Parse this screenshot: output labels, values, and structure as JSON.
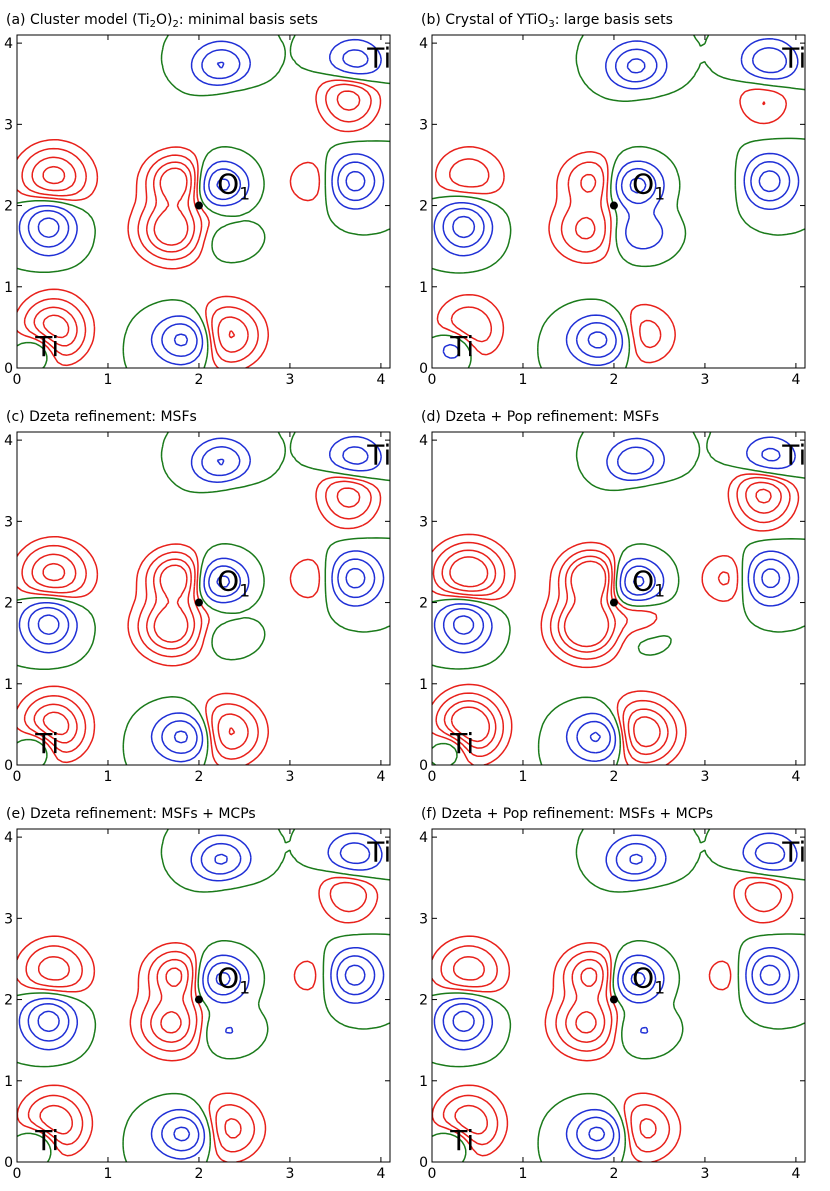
{
  "figure": {
    "colors": {
      "positive": "#1f2fd6",
      "negative": "#e8201a",
      "zero": "#1a7a1a",
      "marker": "#000000"
    },
    "line_styles": {
      "positive": "solid",
      "negative": "dashed",
      "zero": "dash-dot"
    }
  },
  "chart_data": [
    {
      "type": "contour",
      "id": "a",
      "title_main": "(a) Cluster model (Ti",
      "title_sub1": "2",
      "title_mid": "O)",
      "title_sub2": "2",
      "title_end": ": minimal basis sets",
      "xlim": [
        0,
        4.1
      ],
      "ylim": [
        0,
        4.1
      ],
      "xticks": [
        "0",
        "1",
        "2",
        "3",
        "4"
      ],
      "yticks": [
        "0",
        "1",
        "2",
        "3",
        "4"
      ],
      "atom_labels": [
        {
          "text": "Ti",
          "x": 0.2,
          "y": 0.15
        },
        {
          "text": "O",
          "sub": "1",
          "x": 2.2,
          "y": 2.15
        },
        {
          "text": "Ti",
          "x": 3.85,
          "y": 3.7
        }
      ],
      "marker": {
        "x": 2.0,
        "y": 2.0
      }
    },
    {
      "type": "contour",
      "id": "b",
      "title_main": "(b) Crystal of YTiO",
      "title_sub1": "3",
      "title_mid": ": large basis sets",
      "title_sub2": "",
      "title_end": "",
      "xlim": [
        0,
        4.1
      ],
      "ylim": [
        0,
        4.1
      ],
      "xticks": [
        "0",
        "1",
        "2",
        "3",
        "4"
      ],
      "yticks": [
        "0",
        "1",
        "2",
        "3",
        "4"
      ],
      "atom_labels": [
        {
          "text": "Ti",
          "x": 0.2,
          "y": 0.15
        },
        {
          "text": "O",
          "sub": "1",
          "x": 2.2,
          "y": 2.15
        },
        {
          "text": "Ti",
          "x": 3.85,
          "y": 3.7
        }
      ],
      "marker": {
        "x": 2.0,
        "y": 2.0
      }
    },
    {
      "type": "contour",
      "id": "c",
      "title_main": "(c) Dzeta refinement: MSFs",
      "title_sub1": "",
      "title_mid": "",
      "title_sub2": "",
      "title_end": "",
      "xlim": [
        0,
        4.1
      ],
      "ylim": [
        0,
        4.1
      ],
      "xticks": [
        "0",
        "1",
        "2",
        "3",
        "4"
      ],
      "yticks": [
        "0",
        "1",
        "2",
        "3",
        "4"
      ],
      "atom_labels": [
        {
          "text": "Ti",
          "x": 0.2,
          "y": 0.15
        },
        {
          "text": "O",
          "sub": "1",
          "x": 2.2,
          "y": 2.15
        },
        {
          "text": "Ti",
          "x": 3.85,
          "y": 3.7
        }
      ],
      "marker": {
        "x": 2.0,
        "y": 2.0
      }
    },
    {
      "type": "contour",
      "id": "d",
      "title_main": "(d) Dzeta + Pop refinement: MSFs",
      "title_sub1": "",
      "title_mid": "",
      "title_sub2": "",
      "title_end": "",
      "xlim": [
        0,
        4.1
      ],
      "ylim": [
        0,
        4.1
      ],
      "xticks": [
        "0",
        "1",
        "2",
        "3",
        "4"
      ],
      "yticks": [
        "0",
        "1",
        "2",
        "3",
        "4"
      ],
      "atom_labels": [
        {
          "text": "Ti",
          "x": 0.2,
          "y": 0.15
        },
        {
          "text": "O",
          "sub": "1",
          "x": 2.2,
          "y": 2.15
        },
        {
          "text": "Ti",
          "x": 3.85,
          "y": 3.7
        }
      ],
      "marker": {
        "x": 2.0,
        "y": 2.0
      }
    },
    {
      "type": "contour",
      "id": "e",
      "title_main": "(e) Dzeta refinement: MSFs + MCPs",
      "title_sub1": "",
      "title_mid": "",
      "title_sub2": "",
      "title_end": "",
      "xlim": [
        0,
        4.1
      ],
      "ylim": [
        0,
        4.1
      ],
      "xticks": [
        "0",
        "1",
        "2",
        "3",
        "4"
      ],
      "yticks": [
        "0",
        "1",
        "2",
        "3",
        "4"
      ],
      "atom_labels": [
        {
          "text": "Ti",
          "x": 0.2,
          "y": 0.15
        },
        {
          "text": "O",
          "sub": "1",
          "x": 2.2,
          "y": 2.15
        },
        {
          "text": "Ti",
          "x": 3.85,
          "y": 3.7
        }
      ],
      "marker": {
        "x": 2.0,
        "y": 2.0
      }
    },
    {
      "type": "contour",
      "id": "f",
      "title_main": "(f) Dzeta + Pop refinement: MSFs + MCPs",
      "title_sub1": "",
      "title_mid": "",
      "title_sub2": "",
      "title_end": "",
      "xlim": [
        0,
        4.1
      ],
      "ylim": [
        0,
        4.1
      ],
      "xticks": [
        "0",
        "1",
        "2",
        "3",
        "4"
      ],
      "yticks": [
        "0",
        "1",
        "2",
        "3",
        "4"
      ],
      "atom_labels": [
        {
          "text": "Ti",
          "x": 0.2,
          "y": 0.15
        },
        {
          "text": "O",
          "sub": "1",
          "x": 2.2,
          "y": 2.15
        },
        {
          "text": "Ti",
          "x": 3.85,
          "y": 3.7
        }
      ],
      "marker": {
        "x": 2.0,
        "y": 2.0
      }
    }
  ]
}
